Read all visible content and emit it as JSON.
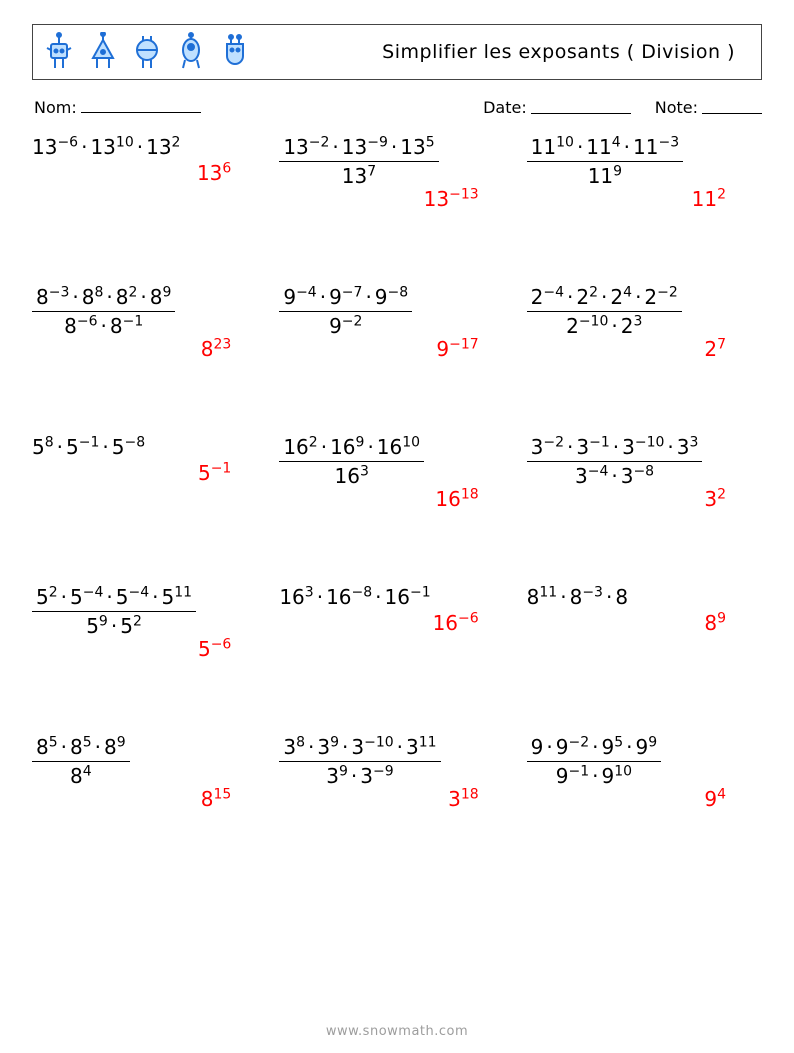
{
  "page_background": "#ffffff",
  "text_color": "#000000",
  "answer_color": "#ff0000",
  "robot_colors": {
    "stroke": "#1f6fd6",
    "fill_light": "#bfe0ff",
    "fill_yellow": "#ffe699"
  },
  "title": "Simplifier les exposants ( Division )",
  "meta": {
    "name_label": "Nom:",
    "date_label": "Date:",
    "note_label": "Note:"
  },
  "footer": "www.snowmath.com",
  "problems": [
    [
      {
        "type": "single",
        "numerator": [
          [
            "13",
            "−6"
          ],
          [
            "13",
            "10"
          ],
          [
            "13",
            "2"
          ]
        ],
        "answer": [
          "13",
          "6"
        ]
      },
      {
        "type": "frac",
        "numerator": [
          [
            "13",
            "−2"
          ],
          [
            "13",
            "−9"
          ],
          [
            "13",
            "5"
          ]
        ],
        "denominator": [
          [
            "13",
            "7"
          ]
        ],
        "answer": [
          "13",
          "−13"
        ]
      },
      {
        "type": "frac",
        "numerator": [
          [
            "11",
            "10"
          ],
          [
            "11",
            "4"
          ],
          [
            "11",
            "−3"
          ]
        ],
        "denominator": [
          [
            "11",
            "9"
          ]
        ],
        "answer": [
          "11",
          "2"
        ]
      }
    ],
    [
      {
        "type": "frac",
        "numerator": [
          [
            "8",
            "−3"
          ],
          [
            "8",
            "8"
          ],
          [
            "8",
            "2"
          ],
          [
            "8",
            "9"
          ]
        ],
        "denominator": [
          [
            "8",
            "−6"
          ],
          [
            "8",
            "−1"
          ]
        ],
        "answer": [
          "8",
          "23"
        ]
      },
      {
        "type": "frac",
        "numerator": [
          [
            "9",
            "−4"
          ],
          [
            "9",
            "−7"
          ],
          [
            "9",
            "−8"
          ]
        ],
        "denominator": [
          [
            "9",
            "−2"
          ]
        ],
        "answer": [
          "9",
          "−17"
        ]
      },
      {
        "type": "frac",
        "numerator": [
          [
            "2",
            "−4"
          ],
          [
            "2",
            "2"
          ],
          [
            "2",
            "4"
          ],
          [
            "2",
            "−2"
          ]
        ],
        "denominator": [
          [
            "2",
            "−10"
          ],
          [
            "2",
            "3"
          ]
        ],
        "answer": [
          "2",
          "7"
        ]
      }
    ],
    [
      {
        "type": "single",
        "numerator": [
          [
            "5",
            "8"
          ],
          [
            "5",
            "−1"
          ],
          [
            "5",
            "−8"
          ]
        ],
        "answer": [
          "5",
          "−1"
        ]
      },
      {
        "type": "frac",
        "numerator": [
          [
            "16",
            "2"
          ],
          [
            "16",
            "9"
          ],
          [
            "16",
            "10"
          ]
        ],
        "denominator": [
          [
            "16",
            "3"
          ]
        ],
        "answer": [
          "16",
          "18"
        ]
      },
      {
        "type": "frac",
        "numerator": [
          [
            "3",
            "−2"
          ],
          [
            "3",
            "−1"
          ],
          [
            "3",
            "−10"
          ],
          [
            "3",
            "3"
          ]
        ],
        "denominator": [
          [
            "3",
            "−4"
          ],
          [
            "3",
            "−8"
          ]
        ],
        "answer": [
          "3",
          "2"
        ]
      }
    ],
    [
      {
        "type": "frac",
        "numerator": [
          [
            "5",
            "2"
          ],
          [
            "5",
            "−4"
          ],
          [
            "5",
            "−4"
          ],
          [
            "5",
            "11"
          ]
        ],
        "denominator": [
          [
            "5",
            "9"
          ],
          [
            "5",
            "2"
          ]
        ],
        "answer": [
          "5",
          "−6"
        ]
      },
      {
        "type": "single",
        "numerator": [
          [
            "16",
            "3"
          ],
          [
            "16",
            "−8"
          ],
          [
            "16",
            "−1"
          ]
        ],
        "answer": [
          "16",
          "−6"
        ]
      },
      {
        "type": "single",
        "numerator": [
          [
            "8",
            "11"
          ],
          [
            "8",
            "−3"
          ],
          [
            "8",
            ""
          ]
        ],
        "answer": [
          "8",
          "9"
        ]
      }
    ],
    [
      {
        "type": "frac",
        "numerator": [
          [
            "8",
            "5"
          ],
          [
            "8",
            "5"
          ],
          [
            "8",
            "9"
          ]
        ],
        "denominator": [
          [
            "8",
            "4"
          ]
        ],
        "answer": [
          "8",
          "15"
        ]
      },
      {
        "type": "frac",
        "numerator": [
          [
            "3",
            "8"
          ],
          [
            "3",
            "9"
          ],
          [
            "3",
            "−10"
          ],
          [
            "3",
            "11"
          ]
        ],
        "denominator": [
          [
            "3",
            "9"
          ],
          [
            "3",
            "−9"
          ]
        ],
        "answer": [
          "3",
          "18"
        ]
      },
      {
        "type": "frac",
        "numerator": [
          [
            "9",
            ""
          ],
          [
            "9",
            "−2"
          ],
          [
            "9",
            "5"
          ],
          [
            "9",
            "9"
          ]
        ],
        "denominator": [
          [
            "9",
            "−1"
          ],
          [
            "9",
            "10"
          ]
        ],
        "answer": [
          "9",
          "4"
        ]
      }
    ]
  ]
}
